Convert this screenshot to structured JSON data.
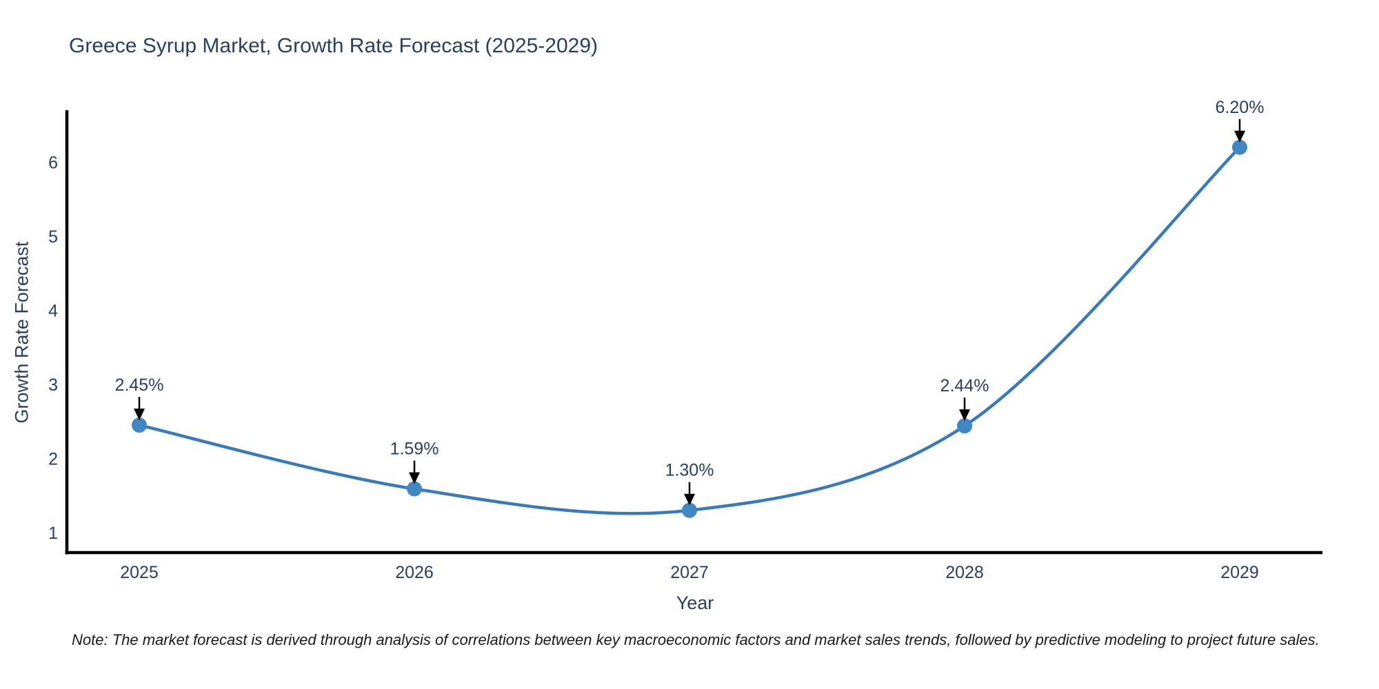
{
  "title": "Greece Syrup Market, Growth Rate Forecast (2025-2029)",
  "note": "Note: The market forecast is derived through analysis of correlations between key macroeconomic factors and market sales trends, followed by predictive modeling to project future sales.",
  "chart_data": {
    "type": "line",
    "line_shape": "spline",
    "title": "Greece Syrup Market, Growth Rate Forecast (2025-2029)",
    "xlabel": "Year",
    "ylabel": "Growth Rate Forecast",
    "categories": [
      "2025",
      "2026",
      "2027",
      "2028",
      "2029"
    ],
    "series": [
      {
        "name": "Growth Rate Forecast",
        "values": [
          2.45,
          1.59,
          1.3,
          2.44,
          6.2
        ],
        "point_labels": [
          "2.45%",
          "1.59%",
          "1.30%",
          "2.44%",
          "6.20%"
        ]
      }
    ],
    "yticks": [
      1,
      2,
      3,
      4,
      5,
      6
    ],
    "ylim": [
      0.73,
      6.7
    ],
    "grid": false,
    "legend_position": "none",
    "annotation_style": "value label with downward arrow onto each marker",
    "colors": {
      "line": "#3a7ab6",
      "marker": "#4187c4",
      "axis_line": "#000000",
      "tick_text": "#2a3f5f",
      "title_text": "#2a3f5f",
      "annotation_text": "#2a3f5f",
      "annotation_arrow": "#000000",
      "note_text": "#1a1a1a",
      "background": "#ffffff"
    }
  }
}
